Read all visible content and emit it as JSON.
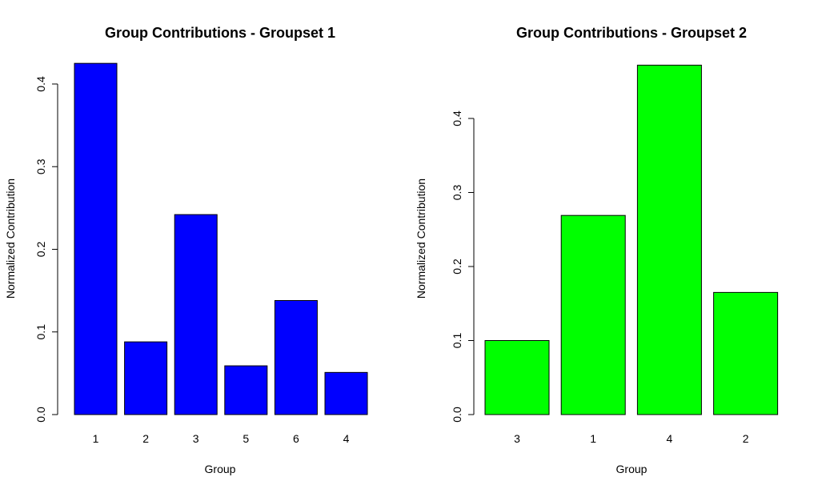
{
  "chart_data": [
    {
      "type": "bar",
      "title": "Group Contributions - Groupset 1",
      "xlabel": "Group",
      "ylabel": "Normalized Contribution",
      "categories": [
        "1",
        "2",
        "3",
        "5",
        "6",
        "4"
      ],
      "values": [
        0.425,
        0.088,
        0.242,
        0.059,
        0.138,
        0.051
      ],
      "ylim": [
        0,
        0.43
      ],
      "yticks": [
        "0.0",
        "0.1",
        "0.2",
        "0.3",
        "0.4"
      ],
      "bar_color": "#0000ff",
      "grid": false,
      "legend": "none"
    },
    {
      "type": "bar",
      "title": "Group Contributions - Groupset 2",
      "xlabel": "Group",
      "ylabel": "Normalized Contribution",
      "categories": [
        "3",
        "1",
        "4",
        "2"
      ],
      "values": [
        0.1,
        0.269,
        0.472,
        0.165
      ],
      "ylim": [
        0,
        0.48
      ],
      "yticks": [
        "0.0",
        "0.1",
        "0.2",
        "0.3",
        "0.4"
      ],
      "bar_color": "#00ff00",
      "grid": false,
      "legend": "none"
    }
  ]
}
